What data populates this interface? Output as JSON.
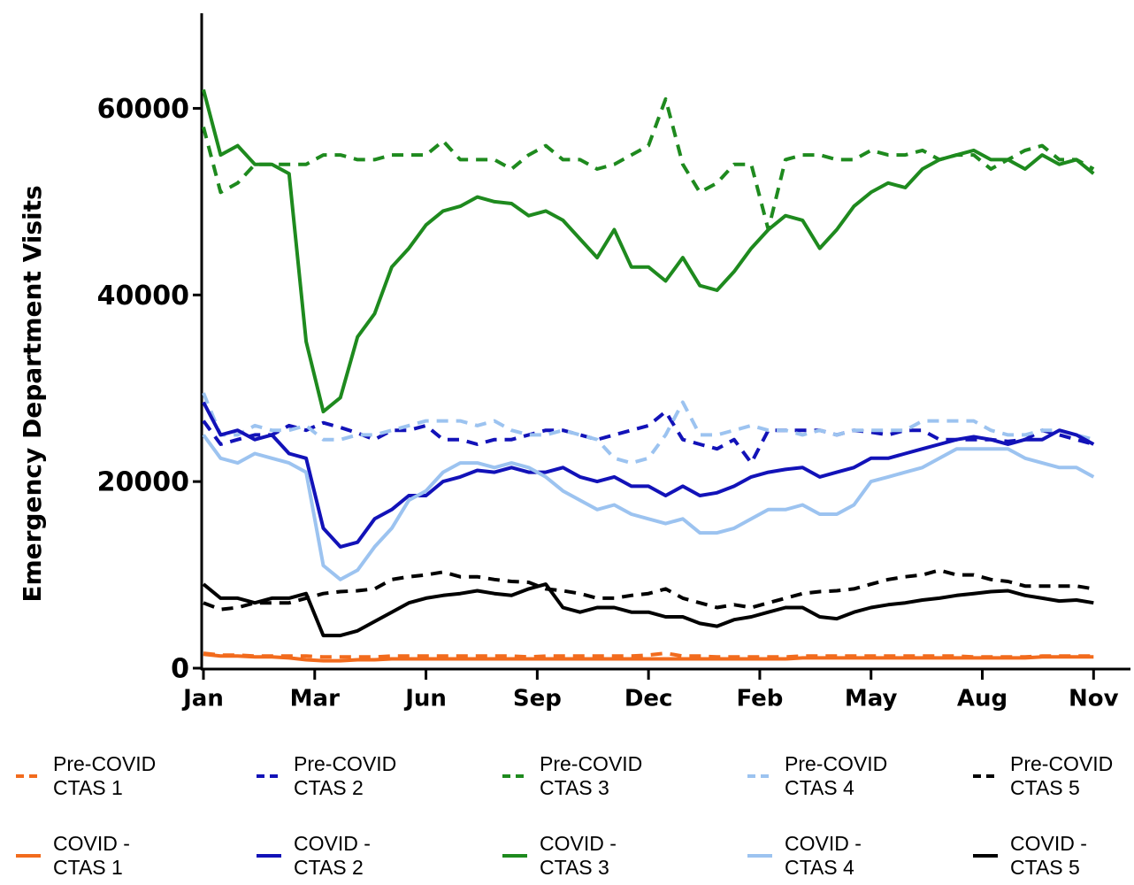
{
  "chart_data": {
    "type": "line",
    "y_label": "Emergency Department Visits",
    "x": [
      0,
      2,
      4,
      6,
      8,
      10,
      12,
      14,
      16,
      18,
      20,
      22,
      24,
      26,
      28,
      30,
      32,
      34,
      36,
      38,
      40,
      42,
      44,
      46,
      48,
      50,
      52,
      54,
      56,
      58,
      60,
      62,
      64,
      66,
      68,
      70,
      72,
      74,
      76,
      78,
      80,
      82,
      84,
      86,
      88,
      90,
      92,
      94,
      96,
      98,
      100,
      102,
      104
    ],
    "xlim": [
      0,
      108
    ],
    "xticks": [
      {
        "value": 0,
        "label": "Jan"
      },
      {
        "value": 13,
        "label": "Mar"
      },
      {
        "value": 26,
        "label": "Jun"
      },
      {
        "value": 39,
        "label": "Sep"
      },
      {
        "value": 52,
        "label": "Dec"
      },
      {
        "value": 65,
        "label": "Feb"
      },
      {
        "value": 78,
        "label": "May"
      },
      {
        "value": 91,
        "label": "Aug"
      },
      {
        "value": 104,
        "label": "Nov"
      }
    ],
    "ylim": [
      0,
      70000
    ],
    "yticks": [
      0,
      20000,
      40000,
      60000
    ],
    "series": [
      {
        "name": "Pre-COVID CTAS 1",
        "color": "#f26b1d",
        "dash": true,
        "values": [
          1600,
          1400,
          1400,
          1300,
          1300,
          1300,
          1300,
          1200,
          1200,
          1200,
          1200,
          1300,
          1300,
          1300,
          1300,
          1300,
          1300,
          1300,
          1300,
          1200,
          1300,
          1300,
          1300,
          1300,
          1300,
          1300,
          1400,
          1600,
          1300,
          1300,
          1200,
          1200,
          1200,
          1200,
          1200,
          1300,
          1300,
          1300,
          1300,
          1300,
          1300,
          1300,
          1300,
          1300,
          1300,
          1200,
          1200,
          1200,
          1200,
          1300,
          1300,
          1300,
          1300
        ]
      },
      {
        "name": "Pre-COVID CTAS 2",
        "color": "#1212b8",
        "dash": true,
        "values": [
          26500,
          24000,
          24500,
          25000,
          25000,
          26000,
          25500,
          26300,
          25800,
          25200,
          24500,
          25500,
          25500,
          26000,
          24500,
          24500,
          24000,
          24500,
          24500,
          25000,
          25500,
          25500,
          25000,
          24500,
          25000,
          25500,
          26000,
          27500,
          24500,
          24000,
          23500,
          24500,
          22000,
          25500,
          25500,
          25500,
          25500,
          25000,
          25500,
          25300,
          25000,
          25500,
          25500,
          24500,
          24500,
          24500,
          24500,
          24300,
          24500,
          25500,
          25000,
          24500,
          24000
        ]
      },
      {
        "name": "Pre-COVID CTAS 3",
        "color": "#1e8a1e",
        "dash": true,
        "values": [
          58000,
          51000,
          52000,
          54000,
          54000,
          54000,
          54000,
          55000,
          55000,
          54500,
          54500,
          55000,
          55000,
          55000,
          56500,
          54500,
          54500,
          54500,
          53500,
          55000,
          56000,
          54500,
          54500,
          53500,
          54000,
          55000,
          56000,
          61000,
          54000,
          51000,
          52000,
          54000,
          54000,
          47000,
          54500,
          55000,
          55000,
          54500,
          54500,
          55500,
          55000,
          55000,
          55500,
          54500,
          55000,
          55000,
          53500,
          54500,
          55500,
          56000,
          54500,
          54500,
          53500
        ]
      },
      {
        "name": "Pre-COVID CTAS 4",
        "color": "#9cc3f0",
        "dash": true,
        "values": [
          29500,
          25000,
          25000,
          26000,
          25500,
          25500,
          26000,
          24500,
          24500,
          25000,
          25000,
          25500,
          26000,
          26500,
          26500,
          26500,
          26000,
          26500,
          25500,
          25000,
          25000,
          25500,
          25000,
          24500,
          22500,
          22000,
          22500,
          25000,
          28500,
          25000,
          25000,
          25500,
          26000,
          25500,
          25500,
          25000,
          25500,
          25000,
          25500,
          25500,
          25500,
          25500,
          26500,
          26500,
          26500,
          26500,
          25500,
          25000,
          25000,
          25500,
          25500,
          25000,
          24500
        ]
      },
      {
        "name": "Pre-COVID CTAS 5",
        "color": "#000000",
        "dash": true,
        "values": [
          7000,
          6300,
          6500,
          7000,
          7000,
          7000,
          7500,
          8000,
          8200,
          8300,
          8500,
          9500,
          9800,
          10000,
          10300,
          9800,
          9800,
          9500,
          9300,
          9200,
          8500,
          8300,
          8000,
          7500,
          7500,
          7800,
          8000,
          8500,
          7500,
          7000,
          6500,
          6800,
          6500,
          7000,
          7500,
          8000,
          8200,
          8300,
          8500,
          9000,
          9500,
          9800,
          10000,
          10500,
          10000,
          10000,
          9500,
          9300,
          8800,
          8800,
          8800,
          8800,
          8500
        ]
      },
      {
        "name": "COVID - CTAS 1",
        "color": "#f26b1d",
        "dash": false,
        "values": [
          1500,
          1300,
          1300,
          1200,
          1200,
          1100,
          900,
          800,
          800,
          900,
          900,
          1000,
          1000,
          1000,
          1000,
          1000,
          1000,
          1000,
          1000,
          1000,
          1000,
          1000,
          1000,
          1000,
          1000,
          1000,
          1000,
          1000,
          1000,
          1000,
          1000,
          1000,
          1000,
          1000,
          1000,
          1100,
          1100,
          1100,
          1100,
          1100,
          1100,
          1100,
          1100,
          1100,
          1100,
          1100,
          1100,
          1100,
          1100,
          1200,
          1200,
          1200,
          1200
        ]
      },
      {
        "name": "COVID - CTAS 2",
        "color": "#1212b8",
        "dash": false,
        "values": [
          28500,
          25000,
          25500,
          24500,
          25000,
          23000,
          22500,
          15000,
          13000,
          13500,
          16000,
          17000,
          18500,
          18500,
          20000,
          20500,
          21200,
          21000,
          21500,
          21000,
          21000,
          21500,
          20500,
          20000,
          20500,
          19500,
          19500,
          18500,
          19500,
          18500,
          18800,
          19500,
          20500,
          21000,
          21300,
          21500,
          20500,
          21000,
          21500,
          22500,
          22500,
          23000,
          23500,
          24000,
          24500,
          24800,
          24500,
          24000,
          24500,
          24500,
          25500,
          25000,
          24000
        ]
      },
      {
        "name": "COVID - CTAS 3",
        "color": "#1e8a1e",
        "dash": false,
        "values": [
          62000,
          55000,
          56000,
          54000,
          54000,
          53000,
          35000,
          27500,
          29000,
          35500,
          38000,
          43000,
          45000,
          47500,
          49000,
          49500,
          50500,
          50000,
          49800,
          48500,
          49000,
          48000,
          46000,
          44000,
          47000,
          43000,
          43000,
          41500,
          44000,
          41000,
          40500,
          42500,
          45000,
          47000,
          48500,
          48000,
          45000,
          47000,
          49500,
          51000,
          52000,
          51500,
          53500,
          54500,
          55000,
          55500,
          54500,
          54500,
          53500,
          55000,
          54000,
          54500,
          53000
        ]
      },
      {
        "name": "COVID - CTAS 4",
        "color": "#9cc3f0",
        "dash": false,
        "values": [
          25000,
          22500,
          22000,
          23000,
          22500,
          22000,
          21000,
          11000,
          9500,
          10500,
          13000,
          15000,
          18000,
          19000,
          21000,
          22000,
          22000,
          21500,
          22000,
          21500,
          20500,
          19000,
          18000,
          17000,
          17500,
          16500,
          16000,
          15500,
          16000,
          14500,
          14500,
          15000,
          16000,
          17000,
          17000,
          17500,
          16500,
          16500,
          17500,
          20000,
          20500,
          21000,
          21500,
          22500,
          23500,
          23500,
          23500,
          23500,
          22500,
          22000,
          21500,
          21500,
          20500
        ]
      },
      {
        "name": "COVID - CTAS 5",
        "color": "#000000",
        "dash": false,
        "values": [
          9000,
          7500,
          7500,
          7000,
          7500,
          7500,
          8000,
          3500,
          3500,
          4000,
          5000,
          6000,
          7000,
          7500,
          7800,
          8000,
          8300,
          8000,
          7800,
          8500,
          9000,
          6500,
          6000,
          6500,
          6500,
          6000,
          6000,
          5500,
          5500,
          4800,
          4500,
          5200,
          5500,
          6000,
          6500,
          6500,
          5500,
          5300,
          6000,
          6500,
          6800,
          7000,
          7300,
          7500,
          7800,
          8000,
          8200,
          8300,
          7800,
          7500,
          7200,
          7300,
          7000
        ]
      }
    ]
  }
}
